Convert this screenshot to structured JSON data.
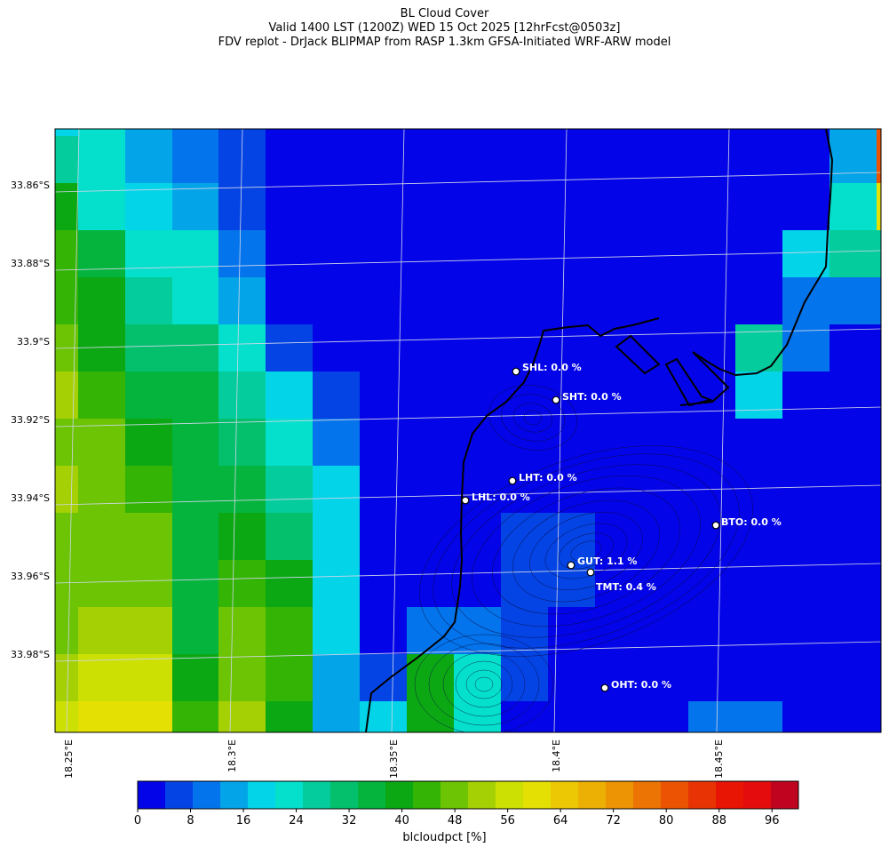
{
  "title": {
    "line1": "BL Cloud Cover",
    "line2": "Valid 1400 LST (1200Z) WED 15 Oct 2025 [12hrFcst@0503z]",
    "line3": "FDV replot - DrJack BLIPMAP from RASP 1.3km GFSA-Initiated WRF-ARW model"
  },
  "map": {
    "lat_labels": [
      "33.86°S",
      "33.88°S",
      "33.9°S",
      "33.92°S",
      "33.94°S",
      "33.96°S",
      "33.98°S"
    ],
    "lon_labels": [
      "18.25°E",
      "18.3°E",
      "18.35°E",
      "18.4°E",
      "18.45°E"
    ],
    "stations": [
      {
        "code": "SHL",
        "label": "SHL: 0.0 %",
        "value": 0.0
      },
      {
        "code": "SHT",
        "label": "SHT: 0.0 %",
        "value": 0.0
      },
      {
        "code": "LHT",
        "label": "LHT: 0.0 %",
        "value": 0.0
      },
      {
        "code": "LHL",
        "label": "LHL: 0.0 %",
        "value": 0.0
      },
      {
        "code": "BTO",
        "label": "BTO: 0.0 %",
        "value": 0.0
      },
      {
        "code": "GUT",
        "label": "GUT: 1.1 %",
        "value": 1.1
      },
      {
        "code": "TMT",
        "label": "TMT: 0.4 %",
        "value": 0.4
      },
      {
        "code": "OHT",
        "label": "OHT: 0.0 %",
        "value": 0.0
      }
    ]
  },
  "colorbar": {
    "label": "blcloudpct [%]",
    "ticks": [
      "0",
      "8",
      "16",
      "24",
      "32",
      "40",
      "48",
      "56",
      "64",
      "72",
      "80",
      "88",
      "96"
    ],
    "min": 0,
    "max": 100,
    "colors": [
      "#0404e8",
      "#0444e4",
      "#0474ec",
      "#04a4e8",
      "#04d4e8",
      "#04e0cc",
      "#04cc9c",
      "#04c06c",
      "#04b43c",
      "#0ca814",
      "#34b404",
      "#6cc404",
      "#a4d004",
      "#cce004",
      "#e4e004",
      "#ecc804",
      "#ecb004",
      "#ec9404",
      "#ec7404",
      "#ec5404",
      "#e83404",
      "#e81404",
      "#e40c0c",
      "#c00420"
    ]
  }
}
